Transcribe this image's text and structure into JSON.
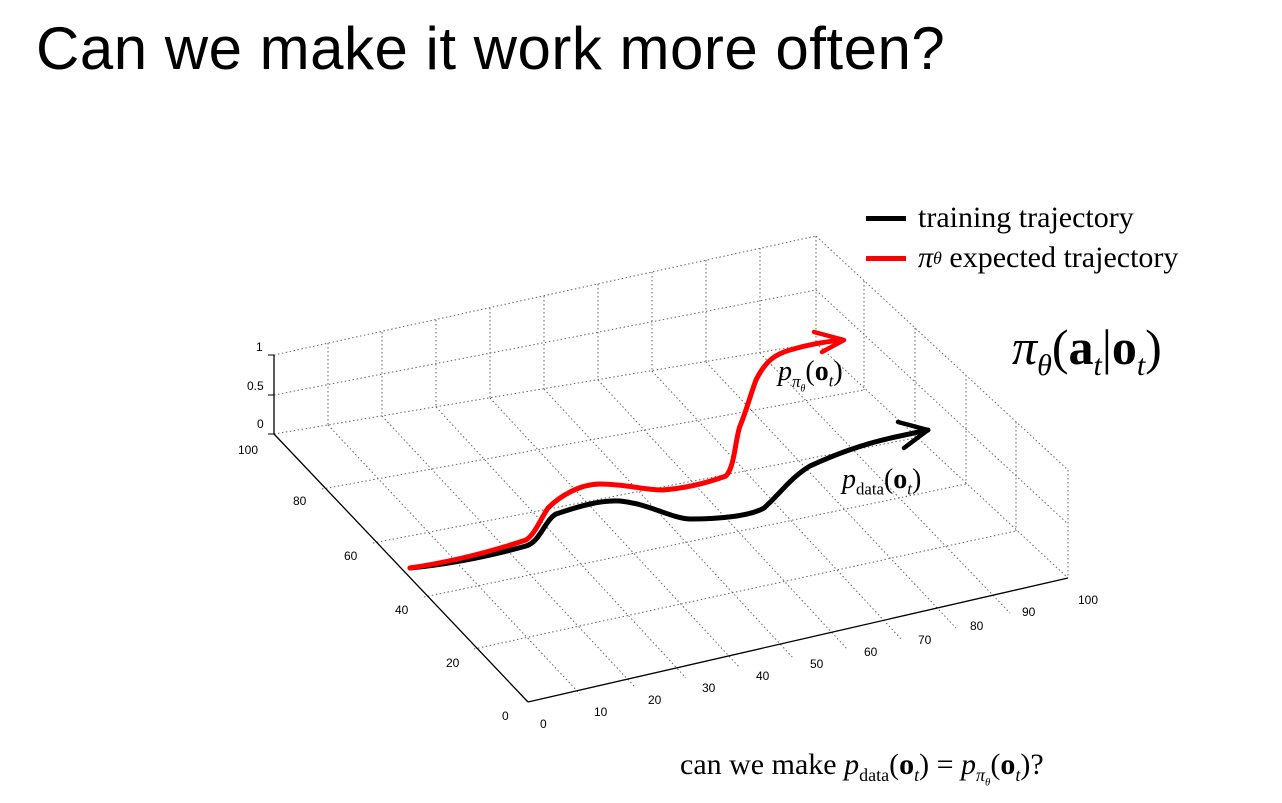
{
  "title": "Can we make it work more often?",
  "legend": [
    {
      "label": "training trajectory",
      "color": "#000000"
    },
    {
      "label_symbol": "π",
      "label_sub": "θ",
      "label": "expected trajectory",
      "color": "#ff0000"
    }
  ],
  "policy": {
    "pi": "π",
    "theta": "θ",
    "a": "a",
    "t": "t",
    "o": "o"
  },
  "label_policy_dist": {
    "p": "p",
    "pi": "π",
    "theta": "θ",
    "o": "o",
    "t": "t"
  },
  "label_data_dist": {
    "p": "p",
    "data": "data",
    "o": "o",
    "t": "t"
  },
  "question": {
    "prefix": "can we make",
    "p": "p",
    "data": "data",
    "o": "o",
    "t": "t",
    "eq": "=",
    "pi": "π",
    "theta": "θ",
    "suffix": "?"
  },
  "axes": {
    "z_ticks": [
      "0",
      "0.5",
      "1"
    ],
    "y_ticks": [
      "0",
      "20",
      "40",
      "60",
      "80",
      "100"
    ],
    "x_ticks": [
      "0",
      "10",
      "20",
      "30",
      "40",
      "50",
      "60",
      "70",
      "80",
      "90",
      "100"
    ]
  },
  "colors": {
    "training": "#000000",
    "expected": "#ff0000",
    "grid": "#555555"
  }
}
